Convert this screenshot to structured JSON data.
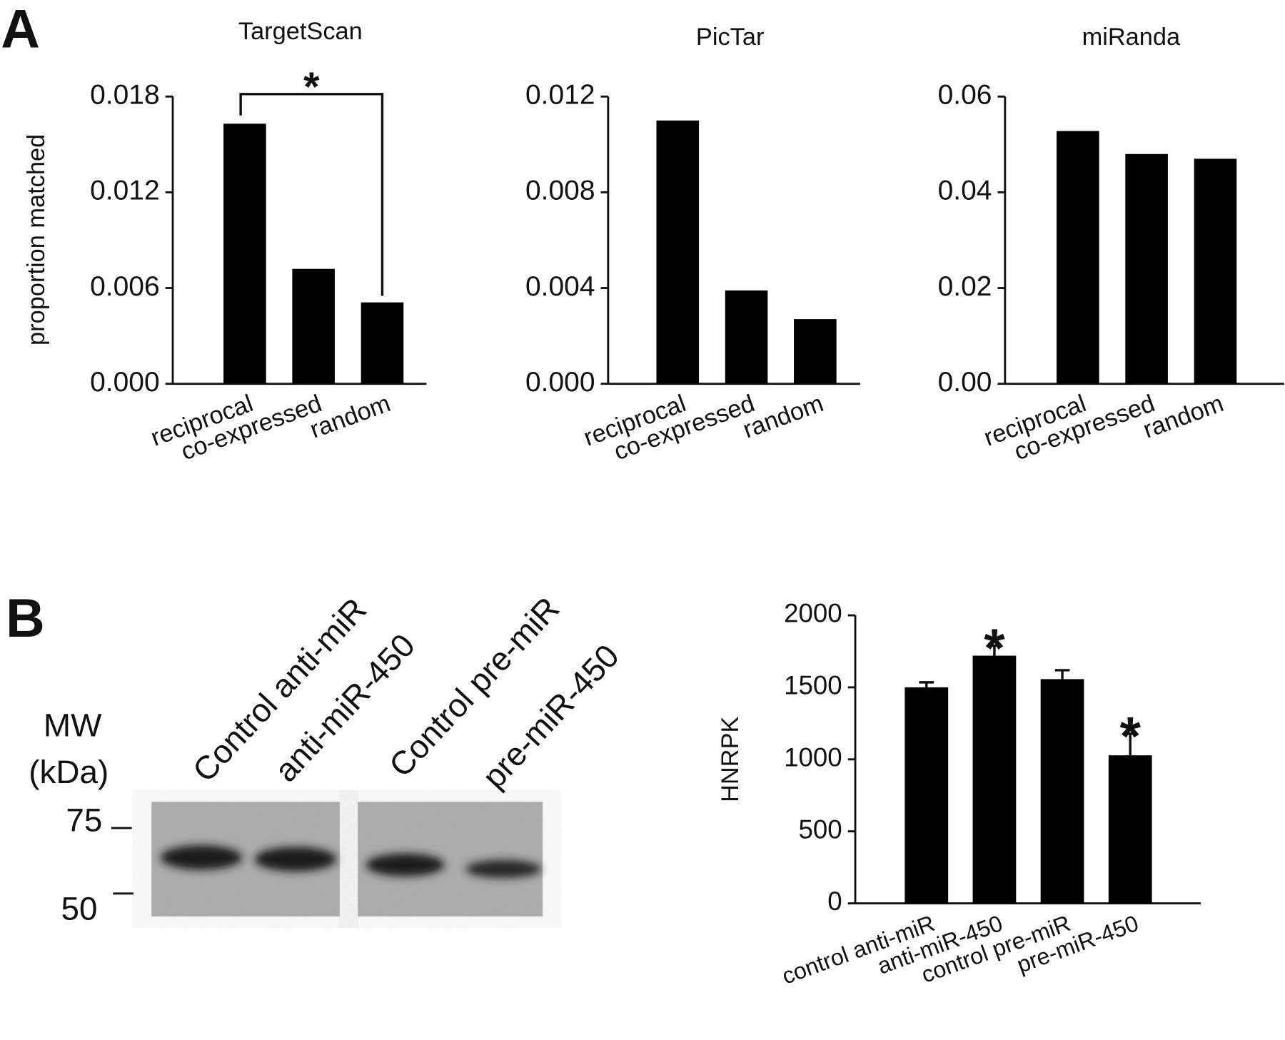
{
  "panels": [
    "A",
    "B"
  ],
  "blot": {
    "mw_label": "MW",
    "unit_label": "(kDa)",
    "markers": [
      75,
      50
    ],
    "lanes": [
      "Control anti-miR",
      "anti-miR-450",
      "Control pre-miR",
      "pre-miR-450"
    ]
  },
  "chart_data": [
    {
      "type": "bar",
      "title": "TargetScan",
      "y_label": "proportion matched",
      "categories": [
        "reciprocal",
        "co-expressed",
        "random"
      ],
      "values": [
        0.0163,
        0.0072,
        0.0051
      ],
      "color": "#000000",
      "ylim": [
        0,
        0.018
      ],
      "yticks": [
        {
          "value": 0,
          "label": "0.000"
        },
        {
          "value": 0.006,
          "label": "0.006"
        },
        {
          "value": 0.012,
          "label": "0.012"
        },
        {
          "value": 0.018,
          "label": "0.018"
        }
      ],
      "brackets": [
        {
          "text": "*",
          "from": "reciprocal",
          "to": "random"
        }
      ]
    },
    {
      "type": "bar",
      "title": "PicTar",
      "categories": [
        "reciprocal",
        "co-expressed",
        "random"
      ],
      "values": [
        0.011,
        0.0039,
        0.0027
      ],
      "color": "#000000",
      "ylim": [
        0,
        0.012
      ],
      "yticks": [
        {
          "value": 0,
          "label": "0.000"
        },
        {
          "value": 0.004,
          "label": "0.004"
        },
        {
          "value": 0.008,
          "label": "0.008"
        },
        {
          "value": 0.012,
          "label": "0.012"
        }
      ]
    },
    {
      "type": "bar",
      "title": "miRanda",
      "categories": [
        "reciprocal",
        "co-expressed",
        "random"
      ],
      "values": [
        0.0528,
        0.048,
        0.047
      ],
      "color": "#000000",
      "ylim": [
        0,
        0.06
      ],
      "yticks": [
        {
          "value": 0,
          "label": "0.00"
        },
        {
          "value": 0.02,
          "label": "0.02"
        },
        {
          "value": 0.04,
          "label": "0.04"
        },
        {
          "value": 0.06,
          "label": "0.06"
        }
      ]
    },
    {
      "type": "bar",
      "y_label": "HNRPK",
      "categories": [
        "control anti-miR",
        "anti-miR-450",
        "control pre-miR",
        "pre-miR-450"
      ],
      "values": [
        1500,
        1720,
        1557,
        1028
      ],
      "errors": [
        35,
        70,
        62,
        150
      ],
      "color": "#000000",
      "ylim": [
        0,
        2000
      ],
      "yticks": [
        0,
        500,
        1000,
        1500,
        2000
      ],
      "annotations": [
        {
          "text": "*",
          "category": "anti-miR-450"
        },
        {
          "text": "*",
          "category": "pre-miR-450"
        }
      ]
    }
  ]
}
